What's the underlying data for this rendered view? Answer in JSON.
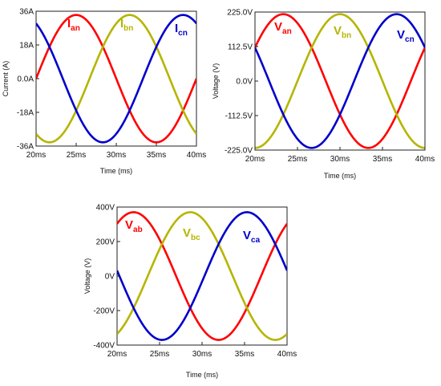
{
  "chart_data": [
    {
      "type": "line",
      "id": "current",
      "xlabel": "Time (ms)",
      "ylabel": "Current (A)",
      "xlim": [
        20,
        40
      ],
      "ylim": [
        -36,
        36
      ],
      "xticks": [
        "20ms",
        "25ms",
        "30ms",
        "35ms",
        "40ms"
      ],
      "yticks": [
        "36A",
        "18A",
        "0.0A",
        "-18A",
        "-36A"
      ],
      "frequency_hz": 50,
      "series": [
        {
          "name": "I",
          "sub": "an",
          "color": "#ff0000",
          "amplitude": 34,
          "phase_deg": 0
        },
        {
          "name": "I",
          "sub": "bn",
          "color": "#b5b500",
          "amplitude": 34,
          "phase_deg": -120
        },
        {
          "name": "I",
          "sub": "cn",
          "color": "#0000cc",
          "amplitude": 34,
          "phase_deg": 120
        }
      ]
    },
    {
      "type": "line",
      "id": "phase-voltage",
      "xlabel": "Time (ms)",
      "ylabel": "Voltage (V)",
      "xlim": [
        20,
        40
      ],
      "ylim": [
        -225,
        225
      ],
      "xticks": [
        "20ms",
        "25ms",
        "30ms",
        "35ms",
        "40ms"
      ],
      "yticks": [
        "225.0V",
        "112.5V",
        "0.0V",
        "-112.5V",
        "-225.0V"
      ],
      "frequency_hz": 50,
      "series": [
        {
          "name": "V",
          "sub": "an",
          "color": "#ff0000",
          "amplitude": 218,
          "phase_deg": 30
        },
        {
          "name": "V",
          "sub": "bn",
          "color": "#b5b500",
          "amplitude": 218,
          "phase_deg": -90
        },
        {
          "name": "V",
          "sub": "cn",
          "color": "#0000cc",
          "amplitude": 218,
          "phase_deg": 150
        }
      ]
    },
    {
      "type": "line",
      "id": "line-voltage",
      "xlabel": "Time (ms)",
      "ylabel": "Voltage (V)",
      "xlim": [
        20,
        40
      ],
      "ylim": [
        -400,
        400
      ],
      "xticks": [
        "20ms",
        "25ms",
        "30ms",
        "35ms",
        "40ms"
      ],
      "yticks": [
        "400V",
        "200V",
        "0V",
        "-200V",
        "-400V"
      ],
      "frequency_hz": 50,
      "series": [
        {
          "name": "V",
          "sub": "ab",
          "color": "#ff0000",
          "amplitude": 370,
          "phase_deg": 55
        },
        {
          "name": "V",
          "sub": "bc",
          "color": "#b5b500",
          "amplitude": 370,
          "phase_deg": -65
        },
        {
          "name": "V",
          "sub": "ca",
          "color": "#0000cc",
          "amplitude": 370,
          "phase_deg": 175
        }
      ]
    }
  ]
}
